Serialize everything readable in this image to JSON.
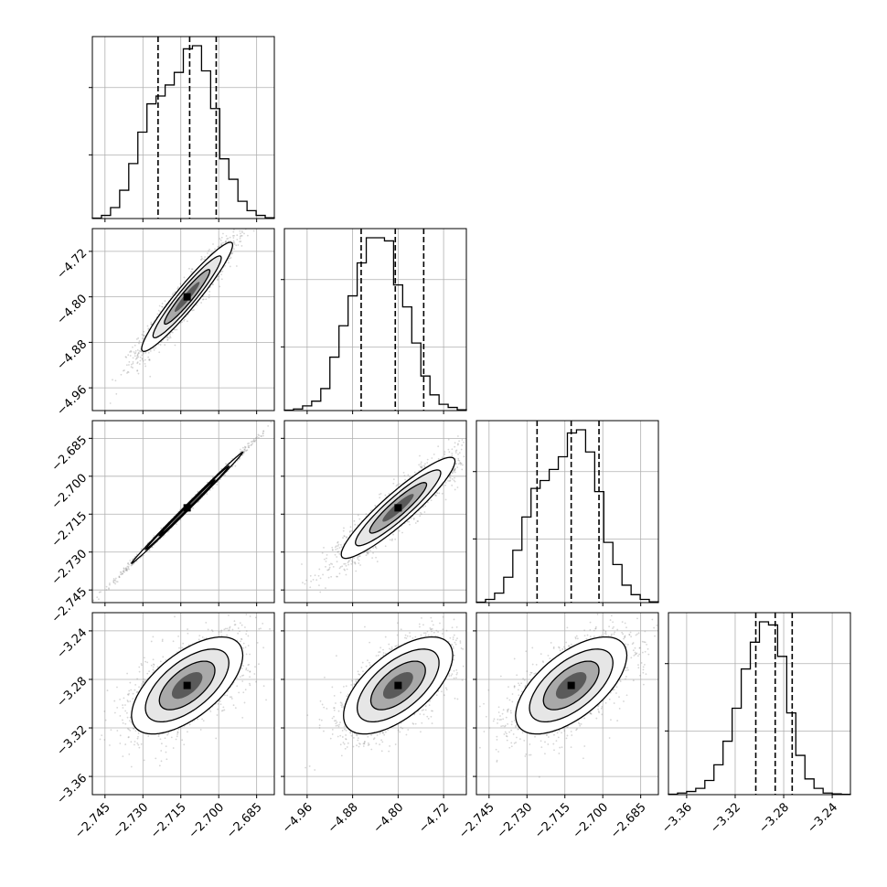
{
  "chart_data": {
    "type": "corner",
    "colors": {
      "line": "#000000",
      "grid": "#b0b0b0",
      "scatter": "#8a8a8a"
    },
    "parameters": [
      {
        "range": [
          -2.75,
          -2.678
        ],
        "ticks": [
          -2.745,
          -2.73,
          -2.715,
          -2.7,
          -2.685
        ],
        "tick_labels": [
          "−2.745",
          "−2.730",
          "−2.715",
          "−2.700",
          "−2.685"
        ],
        "quantiles": [
          -2.724,
          -2.7115,
          -2.701
        ],
        "hist": [
          0.3,
          2,
          7,
          18,
          35,
          55,
          73,
          78,
          85,
          93,
          108,
          110,
          94,
          70,
          38,
          25,
          11,
          5,
          2,
          0.5
        ]
      },
      {
        "range": [
          -5.0,
          -4.68
        ],
        "ticks": [
          -4.96,
          -4.88,
          -4.8,
          -4.72
        ],
        "tick_labels": [
          "−4.96",
          "−4.88",
          "−4.80",
          "−4.72"
        ],
        "quantiles": [
          -4.865,
          -4.805,
          -4.755
        ],
        "hist": [
          0.3,
          1,
          3,
          6,
          14,
          34,
          54,
          73,
          94,
          110,
          110,
          108,
          80,
          66,
          43,
          22,
          10,
          4,
          2,
          0.5
        ]
      },
      {
        "range": [
          -2.75,
          -2.678
        ],
        "ticks": [
          -2.745,
          -2.73,
          -2.715,
          -2.7,
          -2.685
        ],
        "tick_labels": [
          "−2.745",
          "−2.730",
          "−2.715",
          "−2.700",
          "−2.685"
        ],
        "quantiles": [
          -2.726,
          -2.7125,
          -2.7015
        ],
        "hist": [
          0.3,
          2,
          6,
          16,
          33,
          54,
          72,
          77,
          84,
          92,
          107,
          109,
          95,
          70,
          38,
          24,
          11,
          5,
          2,
          0.5
        ]
      },
      {
        "range": [
          -3.375,
          -3.225
        ],
        "ticks": [
          -3.36,
          -3.32,
          -3.28,
          -3.24
        ],
        "tick_labels": [
          "−3.36",
          "−3.32",
          "−3.28",
          "−3.24"
        ],
        "quantiles": [
          -3.303,
          -3.287,
          -3.273
        ],
        "hist": [
          0.3,
          1,
          2,
          4,
          9,
          19,
          34,
          55,
          80,
          97,
          110,
          108,
          88,
          52,
          25,
          10,
          4,
          1,
          0.5,
          0.2
        ]
      }
    ],
    "pairs": [
      {
        "x_param": 0,
        "y_param": 1,
        "mean": [
          -2.7125,
          -4.8
        ],
        "sd": [
          0.009,
          0.048
        ],
        "rho": 0.95
      },
      {
        "x_param": 0,
        "y_param": 2,
        "mean": [
          -2.7125,
          -2.7125
        ],
        "sd": [
          0.011,
          0.011
        ],
        "rho": 0.998
      },
      {
        "x_param": 1,
        "y_param": 2,
        "mean": [
          -4.8,
          -2.7125
        ],
        "sd": [
          0.05,
          0.01
        ],
        "rho": 0.92
      },
      {
        "x_param": 0,
        "y_param": 3,
        "mean": [
          -2.7125,
          -3.285
        ],
        "sd": [
          0.011,
          0.02
        ],
        "rho": 0.62
      },
      {
        "x_param": 1,
        "y_param": 3,
        "mean": [
          -4.8,
          -3.285
        ],
        "sd": [
          0.048,
          0.02
        ],
        "rho": 0.62
      },
      {
        "x_param": 2,
        "y_param": 3,
        "mean": [
          -2.7125,
          -3.285
        ],
        "sd": [
          0.011,
          0.02
        ],
        "rho": 0.62
      }
    ]
  }
}
